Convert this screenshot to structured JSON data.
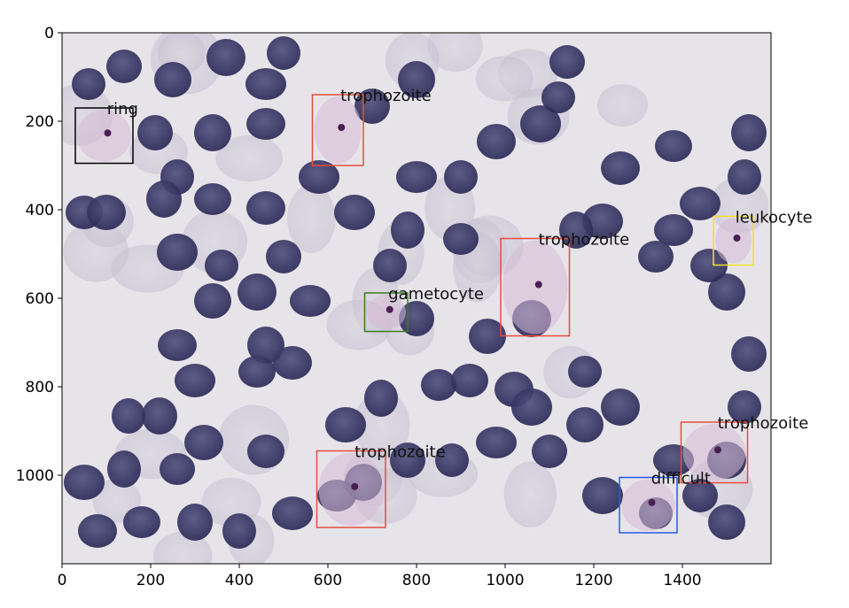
{
  "x_axis": {
    "ticks": [
      "0",
      "200",
      "400",
      "600",
      "800",
      "1000",
      "1200",
      "1400"
    ],
    "tick_values": [
      0,
      200,
      400,
      600,
      800,
      1000,
      1200,
      1400
    ],
    "range": [
      0,
      1600
    ]
  },
  "y_axis": {
    "ticks": [
      "0",
      "200",
      "400",
      "600",
      "800",
      "1000"
    ],
    "tick_values": [
      0,
      200,
      400,
      600,
      800,
      1000
    ],
    "range": [
      0,
      1200
    ]
  },
  "annotations": [
    {
      "label": "ring",
      "color": "#000000",
      "x0": 30,
      "y0": 170,
      "x1": 160,
      "y1": 295
    },
    {
      "label": "trophozoite",
      "color": "#e74c3c",
      "x0": 565,
      "y0": 140,
      "x1": 680,
      "y1": 300
    },
    {
      "label": "trophozoite",
      "color": "#e74c3c",
      "x0": 990,
      "y0": 465,
      "x1": 1145,
      "y1": 685
    },
    {
      "label": "leukocyte",
      "color": "#f1e12a",
      "x0": 1470,
      "y0": 415,
      "x1": 1560,
      "y1": 525
    },
    {
      "label": "gametocyte",
      "color": "#3c7d1b",
      "x0": 683,
      "y0": 588,
      "x1": 780,
      "y1": 675
    },
    {
      "label": "trophozoite",
      "color": "#e74c3c",
      "x0": 575,
      "y0": 945,
      "x1": 730,
      "y1": 1118
    },
    {
      "label": "trophozoite",
      "color": "#e74c3c",
      "x0": 1397,
      "y0": 880,
      "x1": 1547,
      "y1": 1017
    },
    {
      "label": "difficult",
      "color": "#2b59e8",
      "x0": 1258,
      "y0": 1005,
      "x1": 1388,
      "y1": 1130
    }
  ],
  "image": {
    "background_color": "#e6e4e9",
    "cell_color": "#2c2a58"
  }
}
